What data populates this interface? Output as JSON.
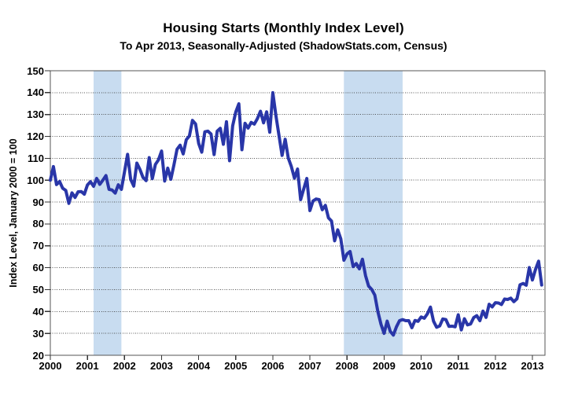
{
  "header": {
    "title": "Housing Starts (Monthly Index Level)",
    "subtitle": "To Apr 2013, Seasonally-Adjusted (ShadowStats.com, Census)"
  },
  "chart_data": {
    "type": "line",
    "title": "Housing Starts (Monthly Index Level)",
    "subtitle": "To Apr 2013, Seasonally-Adjusted (ShadowStats.com, Census)",
    "xlabel": "",
    "ylabel": "Index Level, January 2000 = 100",
    "ylim": [
      20,
      150
    ],
    "ytick_step": 10,
    "y_tick_labels": [
      "20",
      "30",
      "40",
      "50",
      "60",
      "70",
      "80",
      "90",
      "100",
      "110",
      "120",
      "130",
      "140",
      "150"
    ],
    "x_tick_labels": [
      "2000",
      "2001",
      "2002",
      "2003",
      "2004",
      "2005",
      "2006",
      "2007",
      "2008",
      "2009",
      "2010",
      "2011",
      "2012",
      "2013"
    ],
    "x_start": "2000-01",
    "x_end": "2013-04",
    "grid": "horizontal-only",
    "legend": "none",
    "colors": {
      "line": "#2936A8",
      "recession_band": "#C8DCF0",
      "grid": "#3a3a3a",
      "text": "#000000",
      "background": "#ffffff"
    },
    "recession_bands": [
      {
        "from": "2001-03",
        "to": "2001-11"
      },
      {
        "from": "2007-12",
        "to": "2009-06"
      }
    ],
    "series": [
      {
        "name": "Housing Starts Index (Jan 2000 = 100)",
        "frequency": "monthly",
        "values": [
          100.0,
          106.2,
          98.0,
          99.4,
          96.3,
          95.3,
          89.4,
          94.2,
          92.1,
          94.7,
          94.8,
          93.6,
          97.8,
          99.3,
          97.2,
          100.8,
          98.1,
          100.0,
          102.1,
          95.8,
          95.5,
          94.1,
          97.9,
          95.8,
          103.8,
          111.8,
          100.4,
          97.3,
          107.8,
          104.9,
          101.2,
          99.8,
          110.3,
          100.7,
          107.2,
          109.3,
          113.3,
          99.6,
          105.5,
          100.4,
          107.0,
          114.1,
          116.0,
          112.0,
          118.5,
          120.2,
          127.3,
          125.7,
          116.8,
          112.8,
          122.1,
          122.4,
          121.1,
          111.7,
          122.4,
          123.7,
          116.4,
          126.7,
          108.9,
          124.8,
          131.1,
          134.9,
          113.9,
          126.0,
          123.8,
          126.4,
          125.6,
          128.1,
          131.5,
          126.2,
          131.2,
          121.9,
          140.0,
          129.5,
          120.4,
          111.3,
          118.7,
          110.1,
          106.2,
          100.9,
          105.1,
          91.1,
          96.0,
          100.8,
          86.1,
          90.5,
          91.4,
          91.1,
          86.5,
          88.5,
          82.8,
          81.3,
          72.3,
          77.3,
          73.2,
          63.4,
          66.3,
          67.4,
          60.5,
          61.9,
          59.5,
          63.9,
          56.4,
          51.6,
          50.1,
          47.5,
          39.9,
          34.2,
          30.0,
          35.6,
          30.9,
          29.2,
          33.0,
          35.8,
          36.3,
          35.8,
          35.8,
          32.6,
          35.9,
          35.5,
          37.5,
          36.9,
          38.9,
          42.0,
          35.6,
          32.8,
          33.4,
          36.6,
          36.3,
          33.2,
          33.3,
          33.0,
          38.5,
          31.6,
          36.7,
          33.9,
          34.3,
          37.2,
          38.1,
          35.8,
          40.2,
          37.3,
          43.3,
          42.1,
          44.0,
          43.9,
          43.2,
          45.7,
          45.5,
          46.1,
          44.5,
          45.8,
          52.2,
          52.8,
          52.0,
          60.1,
          54.4,
          59.2,
          63.0,
          52.1
        ]
      }
    ]
  }
}
